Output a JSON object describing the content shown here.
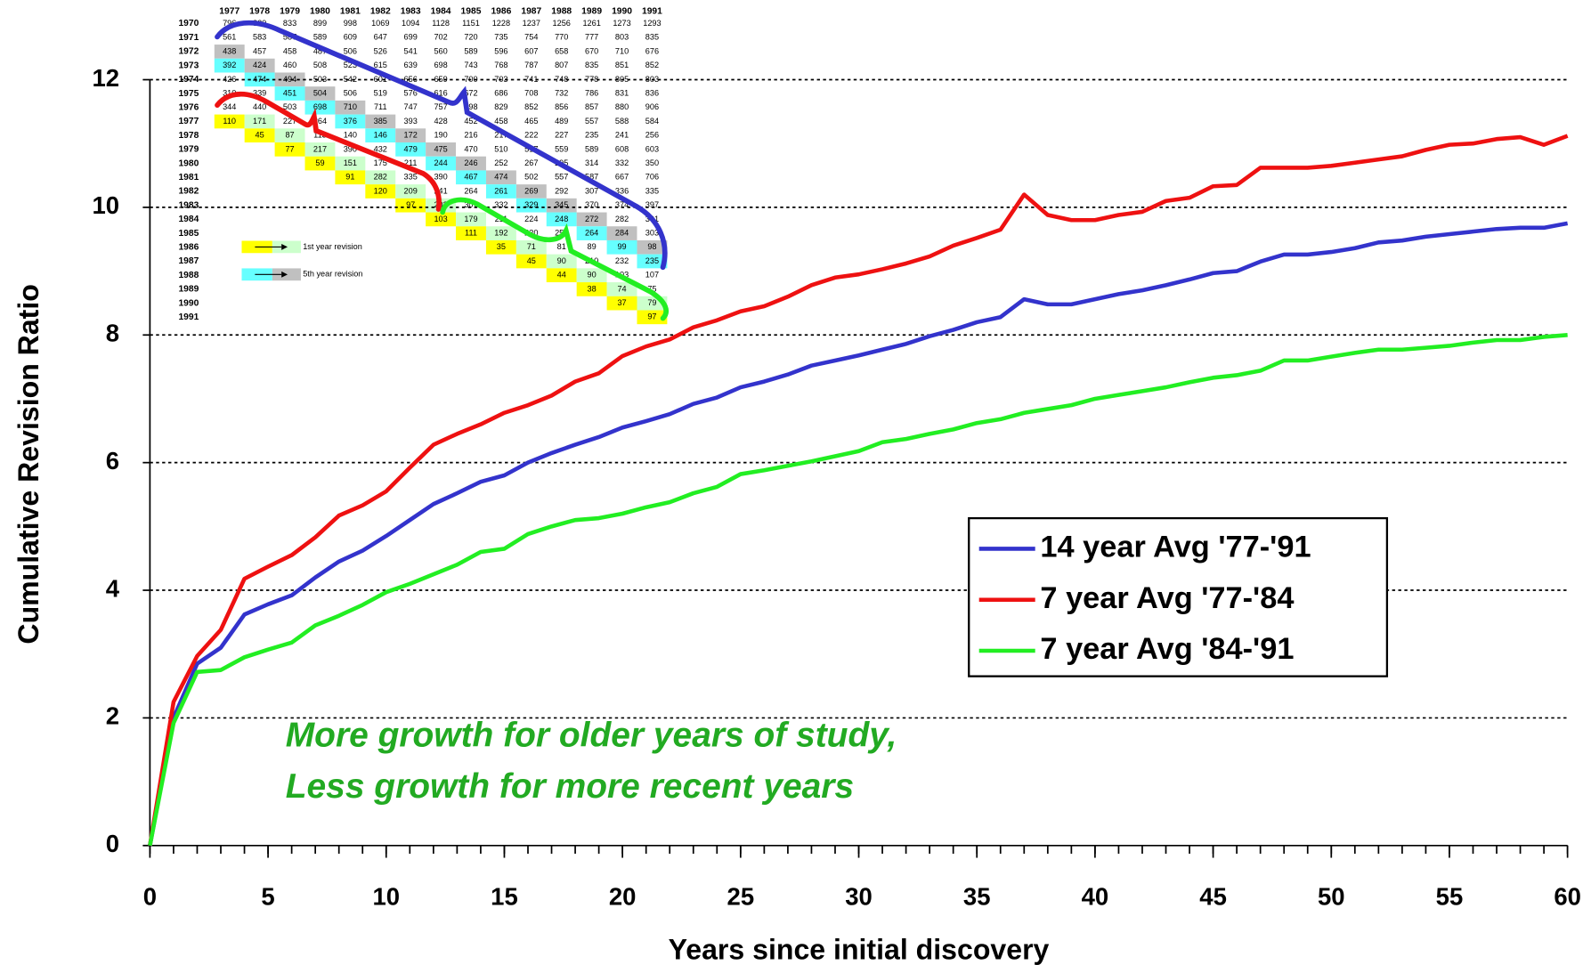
{
  "chart_data": {
    "type": "line",
    "x_label": "Years since initial discovery",
    "y_label": "Cumulative Revision Ratio",
    "annotation": [
      "More growth for older years of study,",
      "Less growth for more recent years"
    ],
    "x": [
      0,
      1,
      2,
      3,
      4,
      5,
      6,
      7,
      8,
      9,
      10,
      11,
      12,
      13,
      14,
      15,
      16,
      17,
      18,
      19,
      20,
      21,
      22,
      23,
      24,
      25,
      26,
      27,
      28,
      29,
      30,
      31,
      32,
      33,
      34,
      35,
      36,
      37,
      38,
      39,
      40,
      41,
      42,
      43,
      44,
      45,
      46,
      47,
      48,
      49,
      50,
      51,
      52,
      53,
      54,
      55,
      56,
      57,
      58,
      59,
      60
    ],
    "xlim": [
      0,
      60
    ],
    "xticks": [
      0,
      5,
      10,
      15,
      20,
      25,
      30,
      35,
      40,
      45,
      50,
      55,
      60
    ],
    "ylim": [
      0,
      12
    ],
    "yticks": [
      0,
      2,
      4,
      6,
      8,
      10,
      12
    ],
    "grid": true,
    "legend": "right",
    "series": [
      {
        "name": "14 year Avg '77-'91",
        "color": "#3333cc",
        "values": [
          0,
          2.0,
          2.85,
          3.1,
          3.62,
          3.78,
          3.92,
          4.2,
          4.45,
          4.62,
          4.85,
          5.1,
          5.35,
          5.52,
          5.7,
          5.8,
          6.0,
          6.15,
          6.28,
          6.4,
          6.55,
          6.65,
          6.76,
          6.92,
          7.02,
          7.18,
          7.27,
          7.38,
          7.52,
          7.6,
          7.68,
          7.77,
          7.86,
          7.98,
          8.08,
          8.2,
          8.28,
          8.56,
          8.48,
          8.48,
          8.56,
          8.64,
          8.7,
          8.78,
          8.87,
          8.97,
          9.0,
          9.15,
          9.26,
          9.26,
          9.3,
          9.36,
          9.45,
          9.48,
          9.54,
          9.58,
          9.62,
          9.66,
          9.68,
          9.68,
          9.75
        ]
      },
      {
        "name": "7 year Avg '77-'84",
        "color": "#ee1111",
        "values": [
          0,
          2.25,
          2.97,
          3.38,
          4.18,
          4.37,
          4.55,
          4.83,
          5.17,
          5.33,
          5.55,
          5.92,
          6.28,
          6.45,
          6.6,
          6.78,
          6.9,
          7.05,
          7.27,
          7.4,
          7.67,
          7.82,
          7.93,
          8.12,
          8.23,
          8.37,
          8.45,
          8.6,
          8.78,
          8.9,
          8.95,
          9.03,
          9.12,
          9.23,
          9.4,
          9.52,
          9.65,
          10.2,
          9.88,
          9.8,
          9.8,
          9.88,
          9.93,
          10.1,
          10.15,
          10.33,
          10.35,
          10.62,
          10.62,
          10.62,
          10.65,
          10.7,
          10.75,
          10.8,
          10.9,
          10.98,
          11.0,
          11.07,
          11.1,
          10.98,
          11.12
        ]
      },
      {
        "name": "7 year Avg '84-'91",
        "color": "#22ee22",
        "values": [
          0,
          1.92,
          2.72,
          2.75,
          2.95,
          3.07,
          3.18,
          3.45,
          3.6,
          3.77,
          3.97,
          4.1,
          4.25,
          4.4,
          4.6,
          4.65,
          4.88,
          5.0,
          5.1,
          5.13,
          5.2,
          5.3,
          5.38,
          5.52,
          5.62,
          5.82,
          5.88,
          5.95,
          6.02,
          6.1,
          6.18,
          6.32,
          6.37,
          6.45,
          6.52,
          6.62,
          6.68,
          6.78,
          6.84,
          6.9,
          7.0,
          7.06,
          7.12,
          7.18,
          7.26,
          7.33,
          7.37,
          7.44,
          7.6,
          7.6,
          7.66,
          7.72,
          7.77,
          7.77,
          7.8,
          7.83,
          7.88,
          7.92,
          7.92,
          7.97,
          8.0
        ]
      }
    ]
  },
  "inset_table": {
    "columns": [
      "1977",
      "1978",
      "1979",
      "1980",
      "1981",
      "1982",
      "1983",
      "1984",
      "1985",
      "1986",
      "1987",
      "1988",
      "1989",
      "1990",
      "1991"
    ],
    "rows": [
      {
        "label": "1970",
        "cells": [
          796,
          820,
          833,
          899,
          998,
          1069,
          1094,
          1128,
          1151,
          1228,
          1237,
          1256,
          1261,
          1273,
          1293
        ]
      },
      {
        "label": "1971",
        "cells": [
          561,
          583,
          587,
          589,
          609,
          647,
          699,
          702,
          720,
          735,
          754,
          770,
          777,
          803,
          835
        ]
      },
      {
        "label": "1972",
        "cells": [
          438,
          457,
          458,
          487,
          506,
          526,
          541,
          560,
          589,
          596,
          607,
          658,
          670,
          710,
          676
        ]
      },
      {
        "label": "1973",
        "cells": [
          392,
          424,
          460,
          508,
          523,
          615,
          639,
          698,
          743,
          768,
          787,
          807,
          835,
          851,
          852
        ]
      },
      {
        "label": "1974",
        "cells": [
          426,
          474,
          494,
          503,
          542,
          601,
          656,
          659,
          700,
          703,
          741,
          748,
          778,
          805,
          803
        ]
      },
      {
        "label": "1975",
        "cells": [
          310,
          339,
          451,
          504,
          506,
          519,
          576,
          616,
          672,
          686,
          708,
          732,
          786,
          831,
          836
        ]
      },
      {
        "label": "1976",
        "cells": [
          344,
          440,
          503,
          698,
          710,
          711,
          747,
          757,
          798,
          829,
          852,
          856,
          857,
          880,
          906
        ]
      },
      {
        "label": "1977",
        "cells": [
          110,
          171,
          227,
          264,
          376,
          385,
          393,
          428,
          452,
          458,
          465,
          489,
          557,
          588,
          584
        ]
      },
      {
        "label": "1978",
        "cells": [
          45,
          87,
          113,
          140,
          146,
          172,
          190,
          216,
          217,
          222,
          227,
          235,
          241,
          256
        ]
      },
      {
        "label": "1979",
        "cells": [
          77,
          217,
          390,
          432,
          479,
          475,
          470,
          510,
          517,
          559,
          589,
          608,
          603
        ]
      },
      {
        "label": "1980",
        "cells": [
          59,
          151,
          175,
          211,
          244,
          246,
          252,
          267,
          295,
          314,
          332,
          350
        ]
      },
      {
        "label": "1981",
        "cells": [
          91,
          282,
          335,
          390,
          467,
          474,
          502,
          557,
          587,
          667,
          706
        ]
      },
      {
        "label": "1982",
        "cells": [
          120,
          209,
          241,
          264,
          261,
          269,
          292,
          307,
          336,
          335
        ]
      },
      {
        "label": "1983",
        "cells": [
          97,
          203,
          307,
          332,
          329,
          345,
          370,
          374,
          397
        ]
      },
      {
        "label": "1984",
        "cells": [
          103,
          179,
          211,
          224,
          248,
          272,
          282,
          301
        ]
      },
      {
        "label": "1985",
        "cells": [
          111,
          192,
          230,
          250,
          264,
          284,
          303
        ]
      },
      {
        "label": "1986",
        "cells": [
          35,
          71,
          81,
          89,
          99,
          98
        ]
      },
      {
        "label": "1987",
        "cells": [
          45,
          90,
          210,
          232,
          235
        ]
      },
      {
        "label": "1988",
        "cells": [
          44,
          90,
          103,
          107
        ]
      },
      {
        "label": "1989",
        "cells": [
          38,
          74,
          75
        ]
      },
      {
        "label": "1990",
        "cells": [
          37,
          79
        ]
      },
      {
        "label": "1991",
        "cells": [
          97
        ]
      }
    ],
    "legend": [
      "1st year revision",
      "5th year revision"
    ]
  }
}
